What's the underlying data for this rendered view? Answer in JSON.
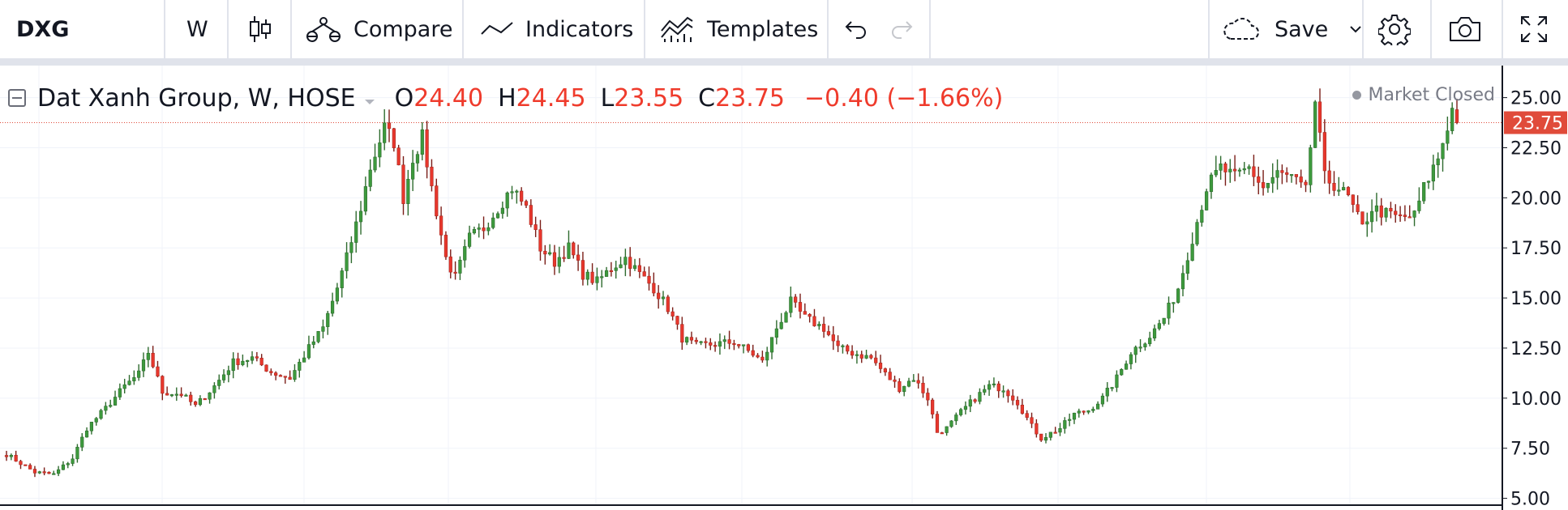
{
  "toolbar": {
    "symbol": "DXG",
    "interval": "W",
    "chart_type_icon": "candles-icon",
    "compare_label": "Compare",
    "compare_icon": "compare-icon",
    "indicators_label": "Indicators",
    "indicators_icon": "indicators-icon",
    "templates_label": "Templates",
    "templates_icon": "templates-icon",
    "undo_icon": "undo-icon",
    "redo_icon": "redo-icon",
    "save_label": "Save",
    "save_icon": "cloud-icon",
    "settings_icon": "gear-icon",
    "snapshot_icon": "camera-icon",
    "fullscreen_icon": "fullscreen-icon"
  },
  "legend": {
    "title": "Dat Xanh Group, W, HOSE",
    "o_label": "O",
    "o_value": "24.40",
    "h_label": "H",
    "h_value": "24.45",
    "l_label": "L",
    "l_value": "23.55",
    "c_label": "C",
    "c_value": "23.75",
    "change": "−0.40 (−1.66%)"
  },
  "status": {
    "market": "Market Closed"
  },
  "colors": {
    "up": "#53b987",
    "down": "#eb4d5c",
    "up_body": "#3d9a3d",
    "down_body": "#e8372d",
    "last_price": "#e04b3a"
  },
  "chart_data": {
    "type": "candlestick",
    "interval": "W",
    "last_price": 23.75,
    "price_axis": {
      "ticks": [
        "25.00",
        "22.50",
        "20.00",
        "17.50",
        "15.00",
        "12.50",
        "10.00",
        "7.50",
        "5.00"
      ],
      "range": [
        4.7,
        26.6
      ]
    },
    "last_price_label": "23.75",
    "waypoints": [
      [
        0,
        7.2
      ],
      [
        6,
        6.3
      ],
      [
        10,
        6.2
      ],
      [
        14,
        7.0
      ],
      [
        17,
        8.5
      ],
      [
        21,
        9.5
      ],
      [
        25,
        10.6
      ],
      [
        28,
        11.2
      ],
      [
        30,
        12.3
      ],
      [
        33,
        10.3
      ],
      [
        37,
        10.2
      ],
      [
        40,
        9.6
      ],
      [
        44,
        10.6
      ],
      [
        48,
        11.8
      ],
      [
        52,
        12.0
      ],
      [
        56,
        11.3
      ],
      [
        60,
        11.0
      ],
      [
        64,
        12.5
      ],
      [
        67,
        13.5
      ],
      [
        70,
        15.5
      ],
      [
        72,
        17.0
      ],
      [
        75,
        19.5
      ],
      [
        77,
        21.5
      ],
      [
        80,
        23.5
      ],
      [
        82,
        22.8
      ],
      [
        84,
        20.0
      ],
      [
        86,
        22.0
      ],
      [
        88,
        23.0
      ],
      [
        90,
        20.5
      ],
      [
        93,
        17.0
      ],
      [
        95,
        16.0
      ],
      [
        98,
        18.0
      ],
      [
        101,
        18.5
      ],
      [
        104,
        19.5
      ],
      [
        107,
        20.5
      ],
      [
        110,
        19.5
      ],
      [
        113,
        17.5
      ],
      [
        116,
        16.8
      ],
      [
        119,
        17.5
      ],
      [
        122,
        16.2
      ],
      [
        125,
        15.8
      ],
      [
        128,
        16.5
      ],
      [
        131,
        17.0
      ],
      [
        134,
        16.2
      ],
      [
        137,
        15.5
      ],
      [
        140,
        14.5
      ],
      [
        143,
        13.0
      ],
      [
        146,
        12.6
      ],
      [
        150,
        12.7
      ],
      [
        154,
        12.8
      ],
      [
        158,
        12.2
      ],
      [
        160,
        11.8
      ],
      [
        163,
        13.5
      ],
      [
        166,
        14.8
      ],
      [
        169,
        14.0
      ],
      [
        173,
        13.5
      ],
      [
        176,
        12.5
      ],
      [
        180,
        12.2
      ],
      [
        183,
        12.0
      ],
      [
        186,
        11.2
      ],
      [
        189,
        10.5
      ],
      [
        192,
        11.0
      ],
      [
        195,
        10.0
      ],
      [
        197,
        8.3
      ],
      [
        199,
        8.5
      ],
      [
        202,
        9.3
      ],
      [
        205,
        10.0
      ],
      [
        208,
        10.6
      ],
      [
        211,
        10.5
      ],
      [
        214,
        9.8
      ],
      [
        217,
        8.6
      ],
      [
        219,
        8.0
      ],
      [
        223,
        8.5
      ],
      [
        226,
        9.2
      ],
      [
        229,
        9.4
      ],
      [
        232,
        10.0
      ],
      [
        235,
        11.0
      ],
      [
        238,
        12.3
      ],
      [
        242,
        13.1
      ],
      [
        245,
        14.0
      ],
      [
        248,
        15.5
      ],
      [
        251,
        18.0
      ],
      [
        254,
        20.5
      ],
      [
        257,
        21.5
      ],
      [
        260,
        21.0
      ],
      [
        263,
        21.5
      ],
      [
        266,
        20.5
      ],
      [
        269,
        21.2
      ],
      [
        272,
        21.0
      ],
      [
        275,
        20.3
      ],
      [
        277,
        24.8
      ],
      [
        279,
        21.0
      ],
      [
        282,
        20.5
      ],
      [
        284,
        20.0
      ],
      [
        287,
        18.5
      ],
      [
        289,
        19.5
      ],
      [
        292,
        19.2
      ],
      [
        295,
        19.0
      ],
      [
        298,
        19.1
      ],
      [
        300,
        20.5
      ],
      [
        303,
        22.0
      ],
      [
        306,
        24.4
      ],
      [
        307,
        23.75
      ]
    ]
  }
}
